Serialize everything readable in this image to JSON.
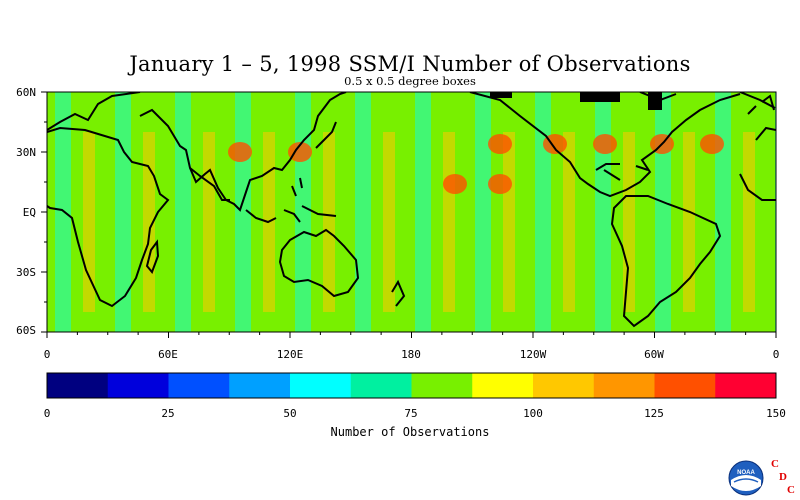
{
  "title": "January 1 – 5, 1998 SSM/I Number of Observations",
  "subtitle": "0.5 x 0.5 degree boxes",
  "y_axis_labels": [
    "60N",
    "30N",
    "EQ",
    "30S",
    "60S"
  ],
  "x_axis_labels": [
    "0",
    "60E",
    "120E",
    "180",
    "120W",
    "60W",
    "0"
  ],
  "colorbar": {
    "title": "Number of Observations",
    "tick_labels": [
      "0",
      "25",
      "50",
      "75",
      "100",
      "125",
      "150"
    ],
    "colors": [
      "#000080",
      "#0000dc",
      "#0050ff",
      "#00a0ff",
      "#00ffff",
      "#00f0a0",
      "#78f000",
      "#ffff00",
      "#ffc800",
      "#ff9600",
      "#ff5000",
      "#ff0032"
    ]
  },
  "logo": {
    "icon": "noaa-logo",
    "text": "NOAA",
    "letters": [
      "C",
      "D",
      "C"
    ]
  },
  "map_features": {
    "ocean_base_color": "#78f000",
    "land_outline_color": "#000000",
    "high_count_color": "#ff5000",
    "low_count_color": "#00ffff",
    "sea_ice_fill": "#000000"
  }
}
